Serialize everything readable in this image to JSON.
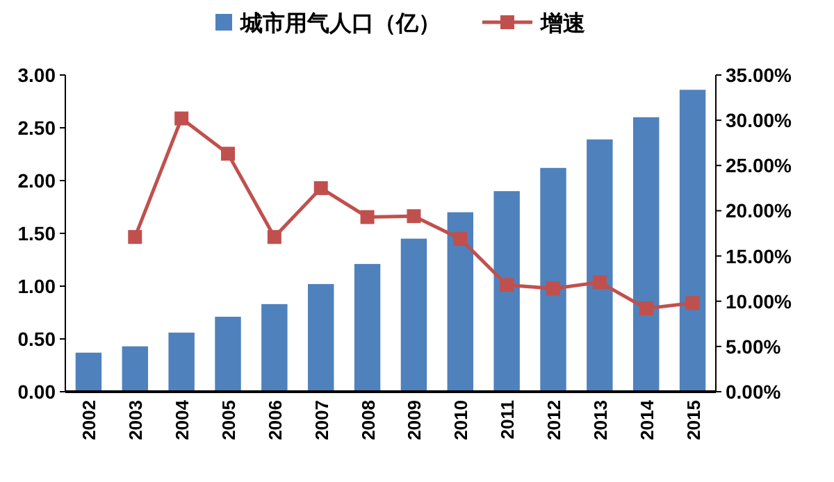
{
  "chart_data": {
    "type": "bar",
    "categories": [
      "2002",
      "2003",
      "2004",
      "2005",
      "2006",
      "2007",
      "2008",
      "2009",
      "2010",
      "2011",
      "2012",
      "2013",
      "2014",
      "2015"
    ],
    "series": [
      {
        "name": "城市用气人口（亿）",
        "color": "#4f81bd",
        "values": [
          0.37,
          0.43,
          0.56,
          0.71,
          0.83,
          1.02,
          1.21,
          1.45,
          1.7,
          1.9,
          2.12,
          2.39,
          2.6,
          2.86
        ]
      },
      {
        "name": "增速",
        "type": "line",
        "axis": "y2",
        "color": "#c0504d",
        "marker": "square",
        "values": [
          null,
          17.1,
          30.2,
          26.3,
          17.1,
          22.5,
          19.3,
          19.4,
          16.9,
          11.8,
          11.4,
          12.1,
          9.2,
          9.8
        ]
      }
    ],
    "ylim": [
      0,
      3
    ],
    "yticks": [
      {
        "value": 0,
        "label": "0.00"
      },
      {
        "value": 0.5,
        "label": "0.50"
      },
      {
        "value": 1,
        "label": "1.00"
      },
      {
        "value": 1.5,
        "label": "1.50"
      },
      {
        "value": 2,
        "label": "2.00"
      },
      {
        "value": 2.5,
        "label": "2.50"
      },
      {
        "value": 3,
        "label": "3.00"
      }
    ],
    "y2lim": [
      0,
      35
    ],
    "y2ticks": [
      {
        "value": 0,
        "label": "0.00%"
      },
      {
        "value": 5,
        "label": "5.00%"
      },
      {
        "value": 10,
        "label": "10.00%"
      },
      {
        "value": 15,
        "label": "15.00%"
      },
      {
        "value": 20,
        "label": "20.00%"
      },
      {
        "value": 25,
        "label": "25.00%"
      },
      {
        "value": 30,
        "label": "30.00%"
      },
      {
        "value": 35,
        "label": "35.00%"
      }
    ],
    "grid": false,
    "legend": "top"
  }
}
